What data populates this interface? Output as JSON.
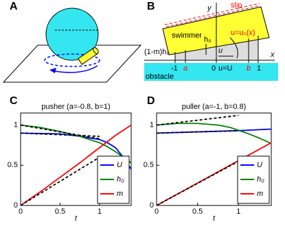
{
  "diagrams": {
    "A": {
      "label": "A"
    },
    "B": {
      "label": "B",
      "slip": "slip",
      "swimmer": "swimmer",
      "y_axis": "y",
      "x_axis": "x",
      "h0": "h₀",
      "us": "u=uₛ(x)",
      "u": "u",
      "uU": "u=U",
      "gap": "(1-m)h₀",
      "obstacle": "obstacle",
      "minus1": "-1",
      "a": "a",
      "zero": "0",
      "b": "b",
      "one": "1"
    }
  },
  "chart_data": [
    {
      "type": "line",
      "label": "C",
      "title": "pusher (a=-0.8, b=1)",
      "xlabel": "t",
      "xlim": [
        0,
        1.4
      ],
      "ylim": [
        0,
        1.15
      ],
      "xticks": [
        0,
        0.5,
        1
      ],
      "yticks": [
        0,
        0.5,
        1
      ],
      "legend": "lower right",
      "series": [
        {
          "name": "U",
          "color": "#0000ff",
          "x": [
            0,
            0.25,
            0.5,
            0.75,
            1.0,
            1.1,
            1.2,
            1.3,
            1.4
          ],
          "values": [
            0.9,
            0.895,
            0.89,
            0.86,
            0.82,
            0.78,
            0.72,
            0.6,
            0.45
          ]
        },
        {
          "name": "h₀",
          "color": "#008000",
          "x": [
            0,
            0.25,
            0.5,
            0.75,
            1.0,
            1.1,
            1.2,
            1.3,
            1.4
          ],
          "values": [
            1.0,
            0.97,
            0.92,
            0.86,
            0.78,
            0.73,
            0.67,
            0.6,
            0.53
          ]
        },
        {
          "name": "m",
          "color": "#ff0000",
          "x": [
            0,
            0.25,
            0.5,
            0.75,
            1.0,
            1.2,
            1.4
          ],
          "values": [
            0,
            0.17,
            0.35,
            0.53,
            0.72,
            0.87,
            1.0
          ]
        },
        {
          "color": "#000000",
          "dash": true,
          "x": [
            0,
            1
          ],
          "values": [
            1.0,
            0.83
          ]
        },
        {
          "color": "#000000",
          "dash": true,
          "x": [
            0,
            1
          ],
          "values": [
            0.9,
            0.86
          ]
        },
        {
          "color": "#000000",
          "dash": true,
          "x": [
            0,
            1
          ],
          "values": [
            0,
            0.6
          ]
        }
      ]
    },
    {
      "type": "line",
      "label": "D",
      "title": "puller (a=-1, b=0.8)",
      "xlabel": "t",
      "xlim": [
        0,
        1.4
      ],
      "ylim": [
        0,
        1.15
      ],
      "xticks": [
        0,
        0.5,
        1
      ],
      "yticks": [
        0,
        0.5,
        1
      ],
      "legend": "lower right",
      "series": [
        {
          "name": "U",
          "color": "#0000ff",
          "x": [
            0,
            0.5,
            1.0,
            1.4
          ],
          "values": [
            0.9,
            0.915,
            0.93,
            0.95
          ]
        },
        {
          "name": "h₀",
          "color": "#008000",
          "x": [
            0,
            0.25,
            0.5,
            0.75,
            0.9,
            1.1,
            1.25,
            1.4
          ],
          "values": [
            1.0,
            1.02,
            1.02,
            1.0,
            0.97,
            0.9,
            0.84,
            0.77
          ]
        },
        {
          "name": "m",
          "color": "#ff0000",
          "x": [
            0,
            0.7,
            1.4
          ],
          "values": [
            0,
            0.39,
            0.78
          ]
        },
        {
          "color": "#000000",
          "dash": true,
          "x": [
            0,
            1
          ],
          "values": [
            1.0,
            1.12
          ]
        },
        {
          "color": "#000000",
          "dash": true,
          "x": [
            0,
            1
          ],
          "values": [
            0.9,
            0.93
          ]
        },
        {
          "color": "#000000",
          "dash": true,
          "x": [
            0,
            1
          ],
          "values": [
            0,
            0.55
          ]
        }
      ]
    }
  ]
}
